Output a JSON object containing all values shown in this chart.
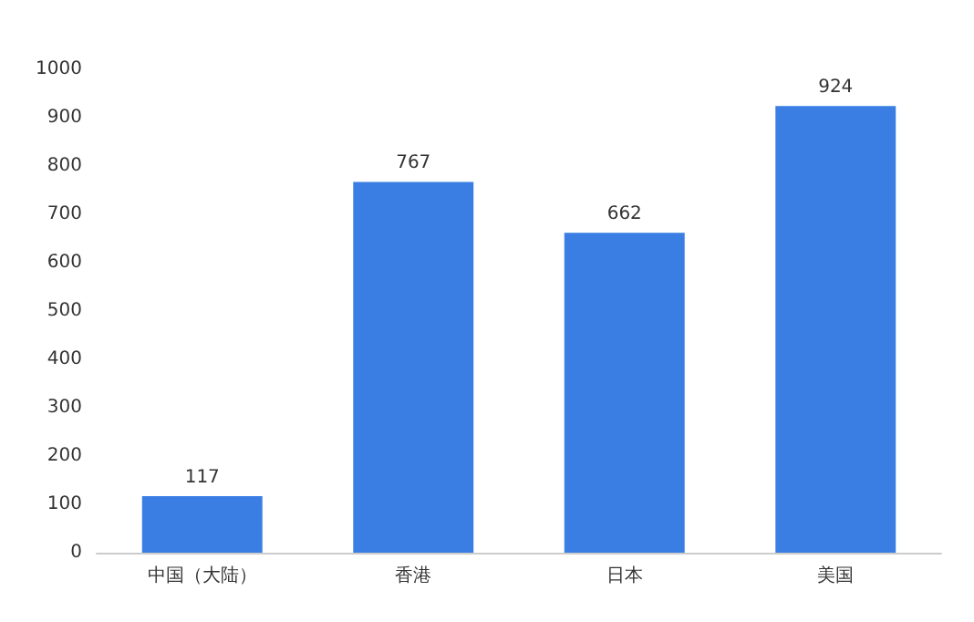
{
  "chart_data": {
    "type": "bar",
    "categories": [
      "中国（大陆）",
      "香港",
      "日本",
      "美国"
    ],
    "values": [
      117,
      767,
      662,
      924
    ],
    "color": "#3a7ee4",
    "ylim": [
      0,
      1000
    ],
    "yticks": [
      0,
      100,
      200,
      300,
      400,
      500,
      600,
      700,
      800,
      900,
      1000
    ],
    "grid": false,
    "data_labels": true
  }
}
